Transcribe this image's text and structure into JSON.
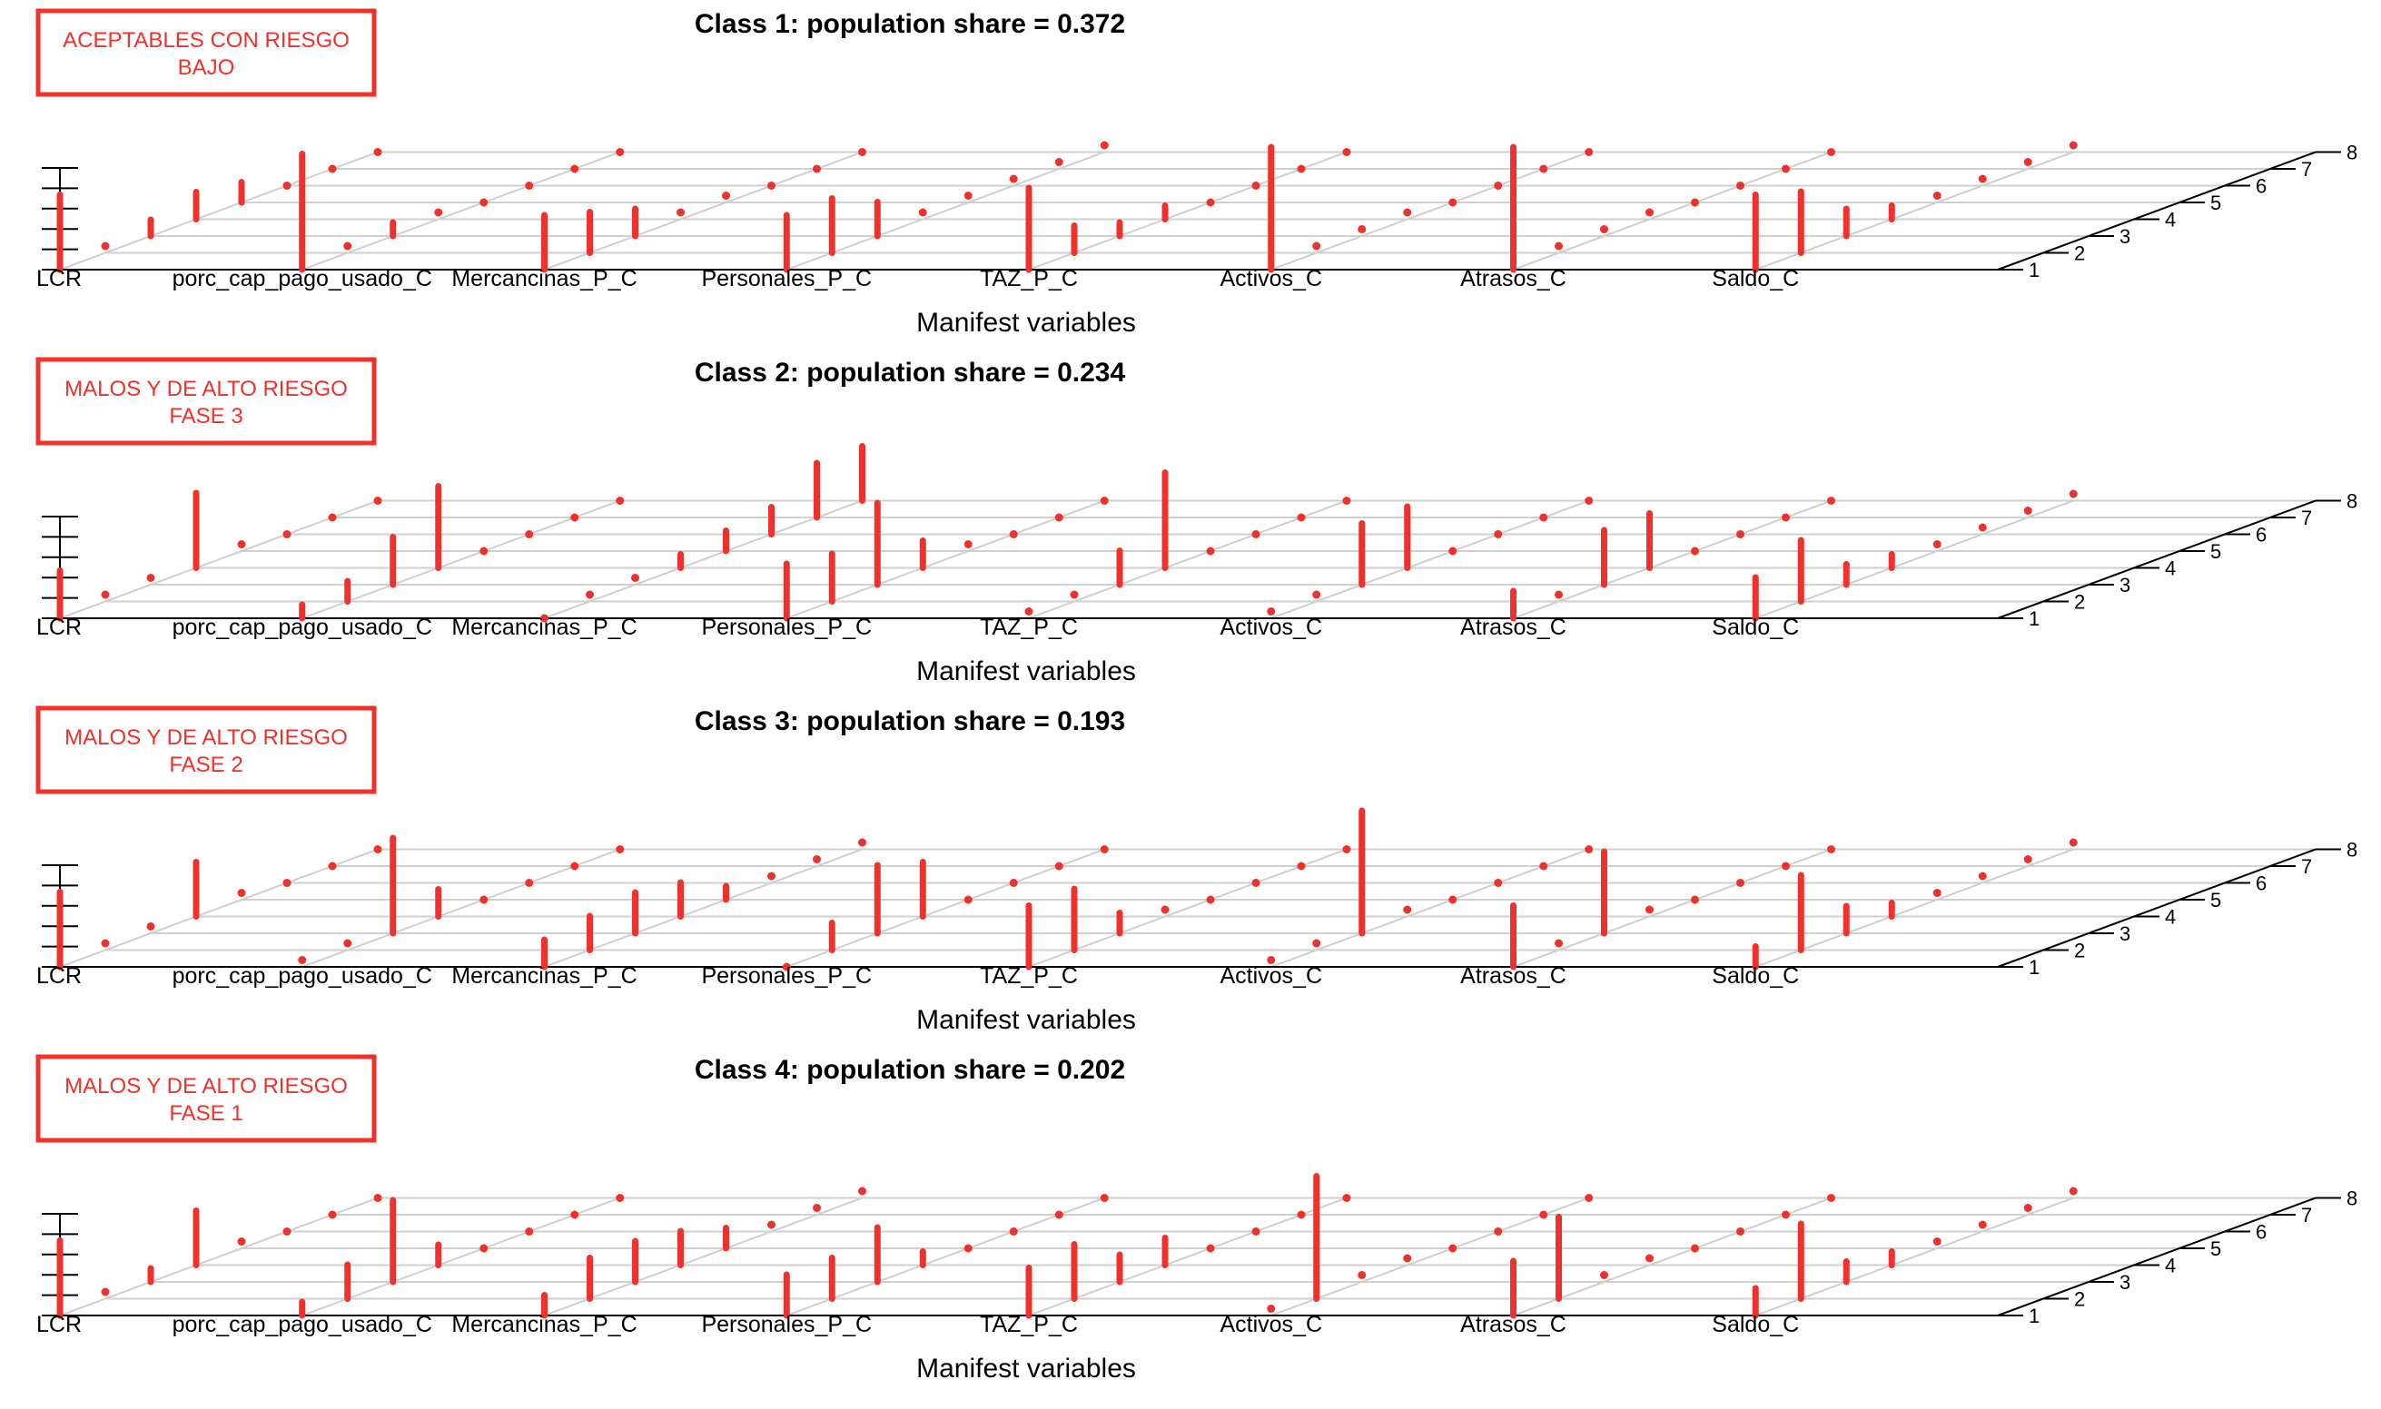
{
  "chart_data": [
    {
      "type": "bar3d",
      "title": "Class 1: population share = 0.372",
      "xlabel": "Manifest variables",
      "badge": [
        "ACEPTABLES CON RIESGO",
        "BAJO"
      ],
      "categories": [
        "LCR",
        "porc_cap_pago_usado_C",
        "Mercancinas_P_C",
        "Personales_P_C",
        "TAZ_P_C",
        "Activos_C",
        "Atrasos_C",
        "Saldo_C"
      ],
      "depth_ticks": [
        "1",
        "2",
        "3",
        "4",
        "5",
        "6",
        "7",
        "8"
      ],
      "color": "#f0302a",
      "values": [
        [
          0.55,
          0.05,
          0.12,
          0.2,
          0.15,
          0.0,
          0.0,
          0.0
        ],
        [
          0.85,
          0.05,
          0.1,
          0.05,
          0.0,
          0.0,
          0.0,
          0.0
        ],
        [
          0.4,
          0.3,
          0.2,
          0.05,
          0.05,
          0.0,
          0.0,
          0.0
        ],
        [
          0.4,
          0.4,
          0.25,
          0.05,
          0.05,
          0.05,
          0.05,
          0.05
        ],
        [
          0.6,
          0.2,
          0.1,
          0.1,
          0.0,
          0.0,
          0.0,
          0.0
        ],
        [
          0.9,
          0.05,
          0.05,
          0.05,
          0.0,
          0.0,
          0.0,
          0.0
        ],
        [
          0.9,
          0.05,
          0.05,
          0.05,
          0.0,
          0.0,
          0.0,
          0.0
        ],
        [
          0.55,
          0.45,
          0.2,
          0.1,
          0.05,
          0.05,
          0.05,
          0.05
        ]
      ]
    },
    {
      "type": "bar3d",
      "title": "Class 2: population share = 0.234",
      "xlabel": "Manifest variables",
      "badge": [
        "MALOS Y DE ALTO RIESGO",
        "FASE 3"
      ],
      "categories": [
        "LCR",
        "porc_cap_pago_usado_C",
        "Mercancinas_P_C",
        "Personales_P_C",
        "TAZ_P_C",
        "Activos_C",
        "Atrasos_C",
        "Saldo_C"
      ],
      "depth_ticks": [
        "1",
        "2",
        "3",
        "4",
        "5",
        "6",
        "7",
        "8"
      ],
      "color": "#f0302a",
      "values": [
        [
          0.35,
          0.05,
          0.05,
          0.55,
          0.05,
          0.0,
          0.0,
          0.0
        ],
        [
          0.1,
          0.15,
          0.35,
          0.6,
          0.0,
          0.0,
          0.0,
          0.0
        ],
        [
          0.0,
          0.05,
          0.05,
          0.1,
          0.15,
          0.2,
          0.4,
          0.4
        ],
        [
          0.4,
          0.35,
          0.6,
          0.2,
          0.05,
          0.0,
          0.0,
          0.0
        ],
        [
          0.05,
          0.05,
          0.25,
          0.7,
          0.0,
          0.0,
          0.0,
          0.0
        ],
        [
          0.05,
          0.05,
          0.45,
          0.45,
          0.0,
          0.0,
          0.0,
          0.0
        ],
        [
          0.2,
          0.05,
          0.4,
          0.4,
          0.0,
          0.0,
          0.0,
          0.0
        ],
        [
          0.3,
          0.45,
          0.15,
          0.1,
          0.05,
          0.05,
          0.05,
          0.05
        ]
      ]
    },
    {
      "type": "bar3d",
      "title": "Class 3: population share = 0.193",
      "xlabel": "Manifest variables",
      "badge": [
        "MALOS Y DE ALTO RIESGO",
        "FASE 2"
      ],
      "categories": [
        "LCR",
        "porc_cap_pago_usado_C",
        "Mercancinas_P_C",
        "Personales_P_C",
        "TAZ_P_C",
        "Activos_C",
        "Atrasos_C",
        "Saldo_C"
      ],
      "depth_ticks": [
        "1",
        "2",
        "3",
        "4",
        "5",
        "6",
        "7",
        "8"
      ],
      "color": "#f0302a",
      "values": [
        [
          0.55,
          0.05,
          0.05,
          0.4,
          0.05,
          0.0,
          0.0,
          0.0
        ],
        [
          0.05,
          0.05,
          0.7,
          0.2,
          0.0,
          0.0,
          0.0,
          0.0
        ],
        [
          0.2,
          0.25,
          0.3,
          0.25,
          0.1,
          0.05,
          0.05,
          0.05
        ],
        [
          0.0,
          0.2,
          0.5,
          0.4,
          0.0,
          0.0,
          0.0,
          0.0
        ],
        [
          0.45,
          0.45,
          0.15,
          0.05,
          0.0,
          0.0,
          0.0,
          0.0
        ],
        [
          0.05,
          0.05,
          0.9,
          0.05,
          0.0,
          0.0,
          0.0,
          0.0
        ],
        [
          0.45,
          0.05,
          0.6,
          0.05,
          0.0,
          0.0,
          0.0,
          0.0
        ],
        [
          0.15,
          0.55,
          0.2,
          0.1,
          0.05,
          0.05,
          0.05,
          0.05
        ]
      ]
    },
    {
      "type": "bar3d",
      "title": "Class 4: population share = 0.202",
      "xlabel": "Manifest variables",
      "badge": [
        "MALOS Y DE ALTO RIESGO",
        "FASE 1"
      ],
      "categories": [
        "LCR",
        "porc_cap_pago_usado_C",
        "Mercancinas_P_C",
        "Personales_P_C",
        "TAZ_P_C",
        "Activos_C",
        "Atrasos_C",
        "Saldo_C"
      ],
      "depth_ticks": [
        "1",
        "2",
        "3",
        "4",
        "5",
        "6",
        "7",
        "8"
      ],
      "color": "#f0302a",
      "values": [
        [
          0.55,
          0.05,
          0.1,
          0.4,
          0.05,
          0.0,
          0.0,
          0.0
        ],
        [
          0.1,
          0.25,
          0.6,
          0.15,
          0.0,
          0.0,
          0.0,
          0.0
        ],
        [
          0.15,
          0.3,
          0.3,
          0.25,
          0.15,
          0.05,
          0.05,
          0.05
        ],
        [
          0.3,
          0.3,
          0.4,
          0.1,
          0.0,
          0.0,
          0.0,
          0.0
        ],
        [
          0.35,
          0.4,
          0.2,
          0.2,
          0.0,
          0.0,
          0.0,
          0.0
        ],
        [
          0.05,
          0.9,
          0.05,
          0.05,
          0.0,
          0.0,
          0.0,
          0.0
        ],
        [
          0.4,
          0.6,
          0.05,
          0.05,
          0.0,
          0.0,
          0.0,
          0.0
        ],
        [
          0.2,
          0.55,
          0.15,
          0.1,
          0.05,
          0.05,
          0.05,
          0.05
        ]
      ]
    }
  ]
}
